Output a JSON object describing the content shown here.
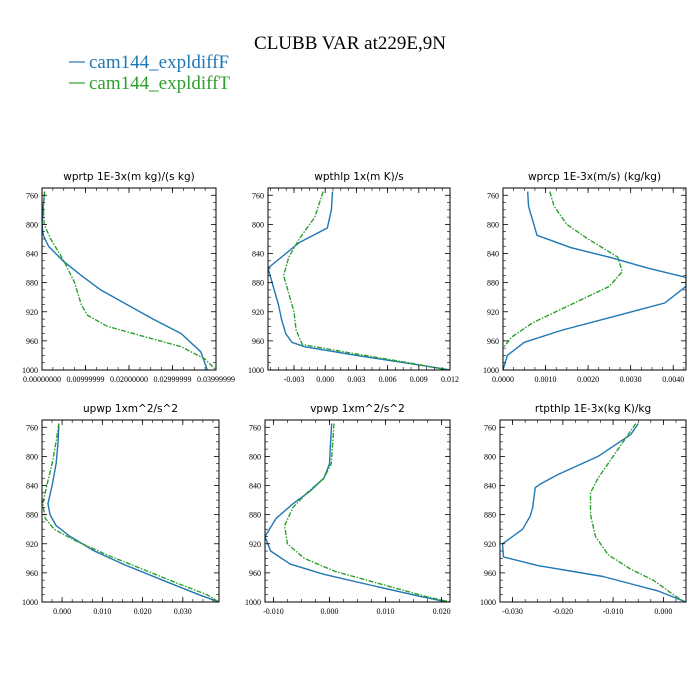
{
  "figure": {
    "title": "CLUBB VAR at229E,9N",
    "legend": [
      {
        "label": "cam144_expldiffF",
        "color": "#1f77b4"
      },
      {
        "label": "cam144_expldiffT",
        "color": "#2ca02c"
      }
    ]
  },
  "chart_data": [
    {
      "type": "line",
      "title": "wprtp   1E-3x(m kg)/(s kg)",
      "xlim": [
        0.0,
        0.04
      ],
      "ylim": [
        1000,
        750
      ],
      "xticks": [
        0.0,
        0.01,
        0.02,
        0.03,
        0.04
      ],
      "xtick_labels": [
        "0.00000000",
        "0.00999999",
        "0.02000000",
        "0.02999999",
        "0.03999999"
      ],
      "yticks": [
        760,
        800,
        840,
        880,
        920,
        960,
        1000
      ],
      "ytick_labels": [
        "760",
        "800",
        "840",
        "880",
        "920",
        "960",
        "1000"
      ],
      "series": [
        {
          "name": "cam144_expldiffF",
          "color": "#1f77b4",
          "dashed": false,
          "x": [
            0.0006,
            0.0003,
            0.0,
            0.0003,
            0.0015,
            0.0048,
            0.009,
            0.0135,
            0.0195,
            0.0255,
            0.032,
            0.0365,
            0.038
          ],
          "y": [
            755,
            775,
            800,
            815,
            830,
            850,
            870,
            890,
            910,
            930,
            950,
            975,
            1000
          ]
        },
        {
          "name": "cam144_expldiffT",
          "color": "#2ca02c",
          "dashed": true,
          "x": [
            0.0006,
            0.0003,
            0.0005,
            0.002,
            0.005,
            0.0075,
            0.009,
            0.0105,
            0.015,
            0.024,
            0.032,
            0.0375,
            0.04
          ],
          "y": [
            755,
            775,
            800,
            820,
            850,
            880,
            910,
            925,
            940,
            955,
            968,
            985,
            1000
          ]
        }
      ]
    },
    {
      "type": "line",
      "title": "wpthlp   1x(m K)/s",
      "xlim": [
        -0.0055,
        0.012
      ],
      "ylim": [
        1000,
        750
      ],
      "xticks": [
        -0.003,
        0.0,
        0.003,
        0.006,
        0.009,
        0.012
      ],
      "xtick_labels": [
        "-0.003",
        "0.000",
        "0.003",
        "0.006",
        "0.009",
        "0.012"
      ],
      "yticks": [
        760,
        800,
        840,
        880,
        920,
        960,
        1000
      ],
      "ytick_labels": [
        "760",
        "800",
        "840",
        "880",
        "920",
        "960",
        "1000"
      ],
      "series": [
        {
          "name": "cam144_expldiffF",
          "color": "#1f77b4",
          "dashed": false,
          "x": [
            0.0007,
            0.0006,
            0.0002,
            -0.0025,
            -0.0055,
            -0.005,
            -0.0045,
            -0.0042,
            -0.0038,
            -0.0032,
            -0.002,
            0.003,
            0.009,
            0.012
          ],
          "y": [
            755,
            780,
            805,
            825,
            860,
            885,
            910,
            930,
            950,
            962,
            968,
            980,
            993,
            1000
          ]
        },
        {
          "name": "cam144_expldiffT",
          "color": "#2ca02c",
          "dashed": true,
          "x": [
            -0.0002,
            -0.001,
            -0.0025,
            -0.0035,
            -0.004,
            -0.0035,
            -0.003,
            -0.0028,
            -0.0022,
            0.003,
            0.008,
            0.0118
          ],
          "y": [
            755,
            790,
            820,
            845,
            870,
            895,
            920,
            945,
            965,
            978,
            990,
            1000
          ]
        }
      ]
    },
    {
      "type": "line",
      "title": "wprcp   1E-3x(m/s) (kg/kg)",
      "xlim": [
        0.0,
        0.0043
      ],
      "ylim": [
        1000,
        750
      ],
      "xticks": [
        0.0,
        0.001,
        0.002,
        0.003,
        0.004
      ],
      "xtick_labels": [
        "0.0000",
        "0.0010",
        "0.0020",
        "0.0030",
        "0.0040"
      ],
      "yticks": [
        760,
        800,
        840,
        880,
        920,
        960,
        1000
      ],
      "ytick_labels": [
        "760",
        "800",
        "840",
        "880",
        "920",
        "960",
        "1000"
      ],
      "series": [
        {
          "name": "cam144_expldiffF",
          "color": "#1f77b4",
          "dashed": false,
          "x": [
            0.00058,
            0.0006,
            0.0007,
            0.0008,
            0.0016,
            0.0025,
            0.0034,
            0.0043,
            0.0043,
            0.0038,
            0.0027,
            0.0014,
            0.0005,
            0.0001,
            0.0
          ],
          "y": [
            755,
            775,
            795,
            815,
            832,
            845,
            860,
            873,
            885,
            908,
            925,
            945,
            962,
            980,
            1000
          ]
        },
        {
          "name": "cam144_expldiffT",
          "color": "#2ca02c",
          "dashed": true,
          "x": [
            0.0011,
            0.0012,
            0.0015,
            0.002,
            0.0027,
            0.0028,
            0.0025,
            0.0016,
            0.0007,
            0.0002,
            0.0
          ],
          "y": [
            755,
            775,
            800,
            820,
            845,
            865,
            885,
            910,
            935,
            955,
            970
          ]
        }
      ]
    },
    {
      "type": "line",
      "title": "upwp   1xm^2/s^2",
      "xlim": [
        -0.005,
        0.039
      ],
      "ylim": [
        1000,
        750
      ],
      "xticks": [
        0.0,
        0.01,
        0.02,
        0.03
      ],
      "xtick_labels": [
        "0.000",
        "0.010",
        "0.020",
        "0.030"
      ],
      "yticks": [
        760,
        800,
        840,
        880,
        920,
        960,
        1000
      ],
      "ytick_labels": [
        "760",
        "800",
        "840",
        "880",
        "920",
        "960",
        "1000"
      ],
      "series": [
        {
          "name": "cam144_expldiffF",
          "color": "#1f77b4",
          "dashed": false,
          "x": [
            -0.0008,
            -0.001,
            -0.0015,
            -0.0025,
            -0.0035,
            -0.003,
            -0.0015,
            0.002,
            0.008,
            0.016,
            0.025,
            0.034,
            0.039
          ],
          "y": [
            755,
            780,
            810,
            840,
            865,
            880,
            895,
            910,
            930,
            950,
            970,
            990,
            1000
          ]
        },
        {
          "name": "cam144_expldiffT",
          "color": "#2ca02c",
          "dashed": true,
          "x": [
            -0.0008,
            -0.0015,
            -0.0025,
            -0.0038,
            -0.0048,
            -0.0042,
            -0.002,
            0.003,
            0.011,
            0.02,
            0.029,
            0.036,
            0.039
          ],
          "y": [
            755,
            780,
            810,
            840,
            865,
            885,
            900,
            915,
            935,
            955,
            975,
            990,
            1000
          ]
        }
      ]
    },
    {
      "type": "line",
      "title": "vpwp   1xm^2/s^2",
      "xlim": [
        -0.0115,
        0.0215
      ],
      "ylim": [
        1000,
        750
      ],
      "xticks": [
        -0.01,
        0.0,
        0.01,
        0.02
      ],
      "xtick_labels": [
        "-0.010",
        "0.000",
        "0.010",
        "0.020"
      ],
      "yticks": [
        760,
        800,
        840,
        880,
        920,
        960,
        1000
      ],
      "ytick_labels": [
        "760",
        "800",
        "840",
        "880",
        "920",
        "960",
        "1000"
      ],
      "series": [
        {
          "name": "cam144_expldiffF",
          "color": "#1f77b4",
          "dashed": false,
          "x": [
            0.0004,
            0.0002,
            0.0,
            -0.001,
            -0.0035,
            -0.0065,
            -0.0095,
            -0.0115,
            -0.0105,
            -0.007,
            -0.001,
            0.008,
            0.016,
            0.021
          ],
          "y": [
            755,
            780,
            810,
            830,
            848,
            865,
            885,
            910,
            930,
            948,
            962,
            978,
            992,
            1000
          ]
        },
        {
          "name": "cam144_expldiffT",
          "color": "#2ca02c",
          "dashed": true,
          "x": [
            0.0008,
            0.0006,
            0.0003,
            -0.001,
            -0.004,
            -0.0065,
            -0.008,
            -0.0075,
            -0.0045,
            0.001,
            0.009,
            0.017,
            0.0215
          ],
          "y": [
            755,
            780,
            810,
            830,
            850,
            870,
            895,
            920,
            940,
            958,
            975,
            992,
            1000
          ]
        }
      ]
    },
    {
      "type": "line",
      "title": "rtpthlp   1E-3x(kg K)/kg",
      "xlim": [
        -0.0325,
        0.0045
      ],
      "ylim": [
        1000,
        750
      ],
      "xticks": [
        -0.03,
        -0.02,
        -0.01,
        0.0
      ],
      "xtick_labels": [
        "-0.030",
        "-0.020",
        "-0.010",
        "0.000"
      ],
      "yticks": [
        760,
        800,
        840,
        880,
        920,
        960,
        1000
      ],
      "ytick_labels": [
        "760",
        "800",
        "840",
        "880",
        "920",
        "960",
        "1000"
      ],
      "series": [
        {
          "name": "cam144_expldiffF",
          "color": "#1f77b4",
          "dashed": false,
          "x": [
            -0.005,
            -0.0065,
            -0.013,
            -0.021,
            -0.0245,
            -0.0255,
            -0.026,
            -0.0265,
            -0.028,
            -0.032,
            -0.0318,
            -0.025,
            -0.012,
            -0.001,
            0.0045
          ],
          "y": [
            755,
            770,
            800,
            825,
            838,
            843,
            870,
            882,
            900,
            920,
            938,
            950,
            965,
            985,
            1000
          ]
        },
        {
          "name": "cam144_expldiffT",
          "color": "#2ca02c",
          "dashed": true,
          "x": [
            -0.0055,
            -0.007,
            -0.01,
            -0.013,
            -0.0145,
            -0.0145,
            -0.0135,
            -0.011,
            -0.0065,
            -0.002,
            0.002,
            0.0042
          ],
          "y": [
            755,
            770,
            800,
            830,
            850,
            880,
            910,
            935,
            955,
            970,
            990,
            1000
          ]
        }
      ]
    }
  ]
}
